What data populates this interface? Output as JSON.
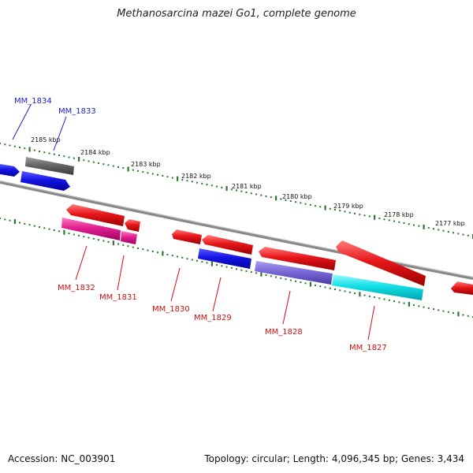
{
  "title": "Methanosarcina mazei Go1, complete genome",
  "footer": {
    "accession": "Accession: NC_003901",
    "stats": "Topology: circular; Length: 4,096,345 bp; Genes: 3,434"
  },
  "colors": {
    "backbone": "#8c8c8c",
    "ticks": "#2a7a2a",
    "forward_label": "#1c1ccc",
    "reverse_label": "#cc1111",
    "red_gene": "#e8161a",
    "blue_gene": "#1414e6",
    "gray_gene": "#666666",
    "magenta_gene": "#e0208e",
    "violet_gene": "#7a6ad8",
    "cyan_gene": "#11dfe6"
  },
  "scale_labels": [
    "2185 kbp",
    "2184 kbp",
    "2183 kbp",
    "2182 kbp",
    "2181 kbp",
    "2180 kbp",
    "2179 kbp",
    "2178 kbp",
    "2177 kbp"
  ],
  "gene_labels": {
    "forward": [
      "MM_1834",
      "MM_1833"
    ],
    "reverse": [
      "MM_1832",
      "MM_1831",
      "MM_1830",
      "MM_1829",
      "MM_1828",
      "MM_1827"
    ]
  }
}
